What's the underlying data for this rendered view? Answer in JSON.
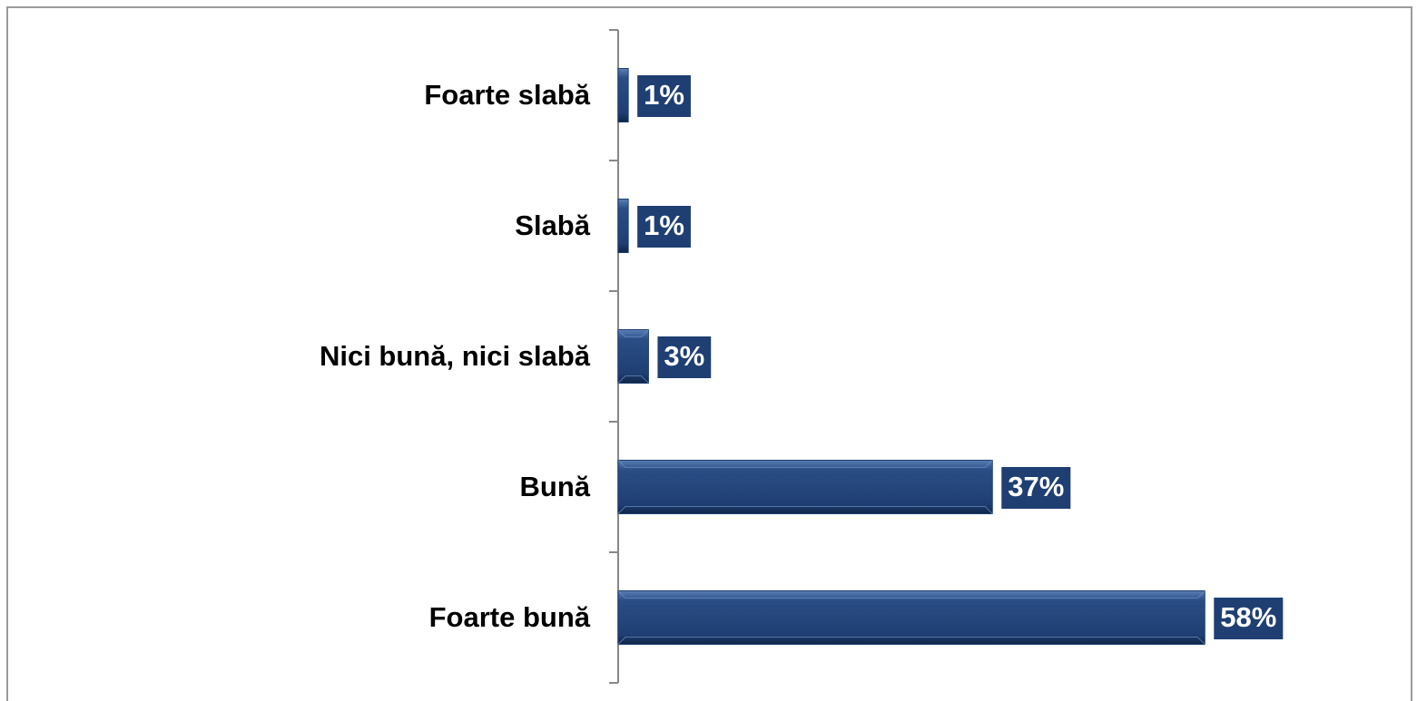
{
  "chart_data": {
    "type": "bar",
    "orientation": "horizontal",
    "categories": [
      "Foarte slabă",
      "Slabă",
      "Nici bună, nici slabă",
      "Bună",
      "Foarte bună"
    ],
    "values": [
      1,
      1,
      3,
      37,
      58
    ],
    "value_labels": [
      "1%",
      "1%",
      "3%",
      "37%",
      "58%"
    ],
    "color": "#1f3f73",
    "xlim": [
      0,
      70
    ]
  }
}
